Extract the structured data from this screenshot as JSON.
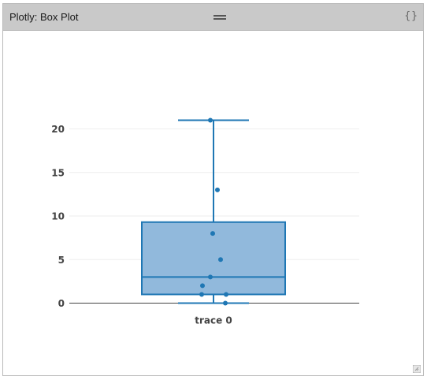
{
  "window": {
    "title": "Plotly: Box Plot",
    "code_icon": "{}"
  },
  "colors": {
    "box_fill": "#91b9dc",
    "box_stroke": "#1f77b4",
    "point": "#1f77b4",
    "grid": "#eeeeee",
    "zeroline": "#444444",
    "tick_text": "#444444"
  },
  "chart_data": {
    "type": "box",
    "y_ticks": [
      0,
      5,
      10,
      15,
      20
    ],
    "ylim": [
      0,
      21
    ],
    "grid": true,
    "category_label": "trace 0",
    "series": [
      {
        "points": [
          21,
          13,
          8,
          5,
          3,
          2,
          1,
          1,
          0
        ],
        "min": 0,
        "q1": 1,
        "median": 3,
        "q3": 9.3,
        "max": 21
      }
    ]
  }
}
